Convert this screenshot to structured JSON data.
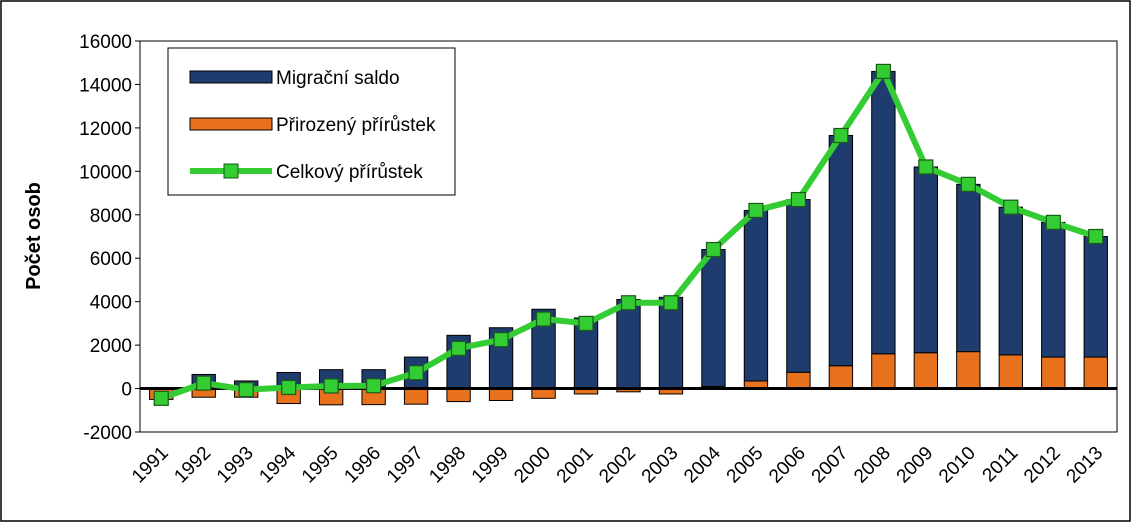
{
  "chart_data": {
    "type": "bar+line",
    "y_label": "Počet osob",
    "categories": [
      "1991",
      "1992",
      "1993",
      "1994",
      "1995",
      "1996",
      "1997",
      "1998",
      "1999",
      "2000",
      "2001",
      "2002",
      "2003",
      "2004",
      "2005",
      "2006",
      "2007",
      "2008",
      "2009",
      "2010",
      "2011",
      "2012",
      "2013"
    ],
    "series": [
      {
        "name": "Migrační saldo",
        "type": "bar",
        "color": "#1f3c6e",
        "values": [
          50,
          650,
          350,
          740,
          870,
          870,
          1450,
          2450,
          2800,
          3650,
          3250,
          4100,
          4200,
          6300,
          7850,
          7950,
          10600,
          13000,
          8550,
          7700,
          6800,
          6200,
          5550
        ]
      },
      {
        "name": "Přirozený přírůstek",
        "type": "bar",
        "color": "#e8711e",
        "values": [
          -500,
          -400,
          -400,
          -690,
          -750,
          -740,
          -720,
          -600,
          -550,
          -450,
          -250,
          -150,
          -250,
          100,
          350,
          750,
          1050,
          1600,
          1650,
          1700,
          1550,
          1450,
          1450
        ]
      },
      {
        "name": "Celkový přírůstek",
        "type": "line",
        "color": "#33cc33",
        "values": [
          -450,
          250,
          -50,
          50,
          120,
          130,
          730,
          1850,
          2250,
          3200,
          3000,
          3950,
          3950,
          6400,
          8200,
          8700,
          11650,
          14600,
          10200,
          9400,
          8350,
          7650,
          7000
        ]
      }
    ],
    "ylim": [
      -2000,
      16000
    ],
    "yticks": [
      -2000,
      0,
      2000,
      4000,
      6000,
      8000,
      10000,
      12000,
      14000,
      16000
    ]
  }
}
